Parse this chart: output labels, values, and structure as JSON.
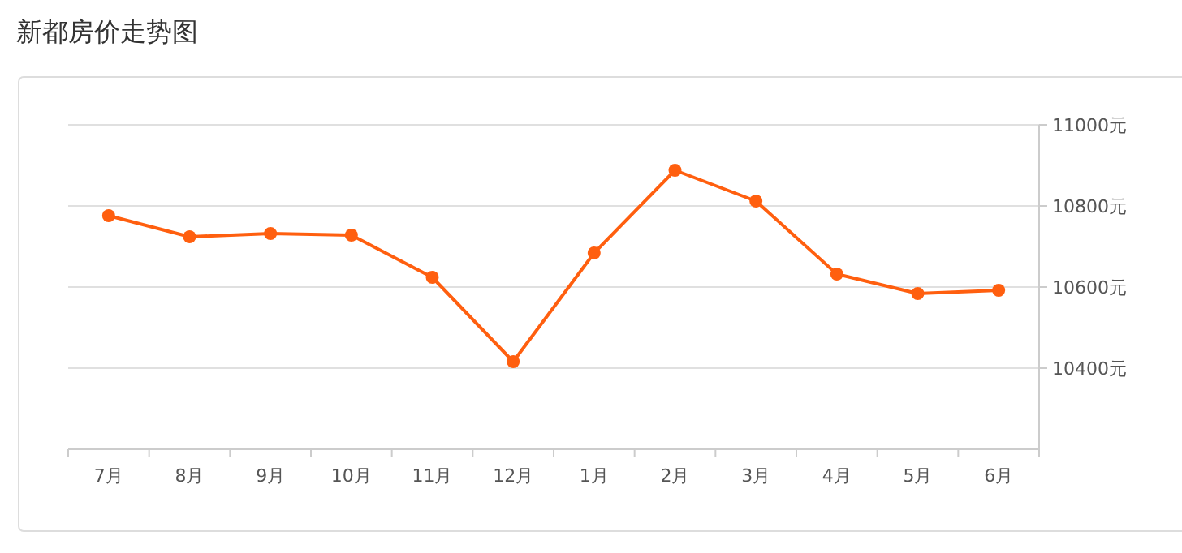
{
  "chart_data": {
    "type": "line",
    "title": "新都房价走势图",
    "categories": [
      "7月",
      "8月",
      "9月",
      "10月",
      "11月",
      "12月",
      "1月",
      "2月",
      "3月",
      "4月",
      "5月",
      "6月"
    ],
    "series": [
      {
        "color": "#ff5f0f",
        "values": [
          10776,
          10724,
          10732,
          10728,
          10624,
          10416,
          10684,
          10888,
          10812,
          10632,
          10584,
          10592
        ]
      }
    ],
    "ylim": [
      10200,
      11000
    ],
    "yticks": [
      {
        "value": 10400,
        "label": "10400元"
      },
      {
        "value": 10600,
        "label": "10600元"
      },
      {
        "value": 10800,
        "label": "10800元"
      },
      {
        "value": 11000,
        "label": "11000元"
      }
    ],
    "grid": "y",
    "marker": "circle",
    "line_style": "solid"
  }
}
